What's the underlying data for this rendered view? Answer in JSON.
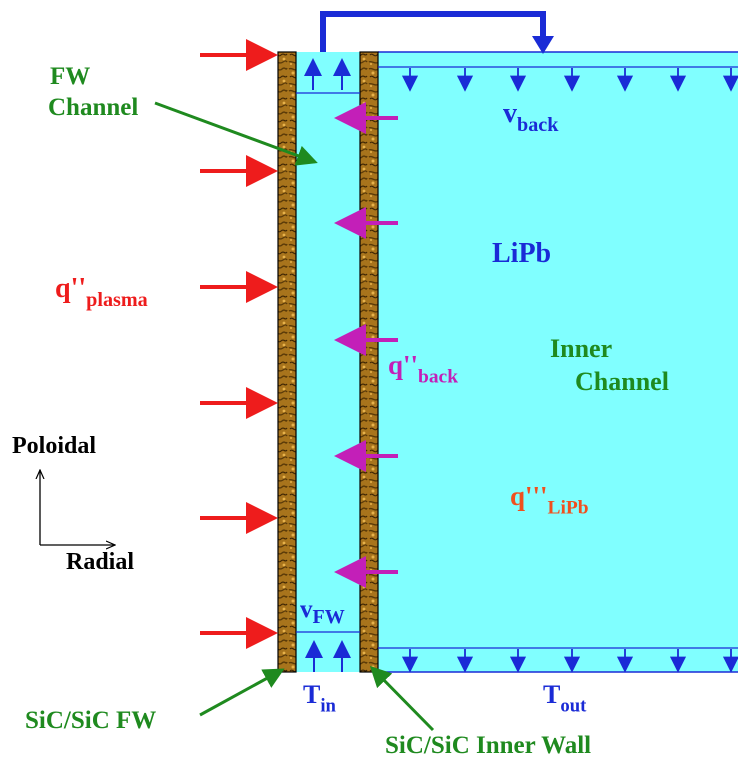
{
  "labels": {
    "fw_channel_line1": "FW",
    "fw_channel_line2": "Channel",
    "v_back": "v",
    "v_back_sub": "back",
    "lipb": "LiPb",
    "q_plasma": "q''",
    "q_plasma_sub": "plasma",
    "inner_channel_line1": "Inner",
    "inner_channel_line2": "Channel",
    "q_back": "q''",
    "q_back_sub": "back",
    "poloidal": "Poloidal",
    "radial": "Radial",
    "q_lipb": "q'''",
    "q_lipb_sub": "LiPb",
    "v_fw": "v",
    "v_fw_sub": "FW",
    "t_in": "T",
    "t_in_sub": "in",
    "t_out": "T",
    "t_out_sub": "out",
    "sic_fw": "SiC/SiC FW",
    "sic_inner_wall": "SiC/SiC Inner Wall"
  },
  "colors": {
    "coolant": "#80ffff",
    "wall": "#a8741c",
    "wall_dark": "#5a3a08",
    "flow_arrow": "#1a2bd6",
    "plasma_arrow": "#ee1c1c",
    "back_arrow": "#c31fb8",
    "pointer": "#1f8a1f"
  }
}
